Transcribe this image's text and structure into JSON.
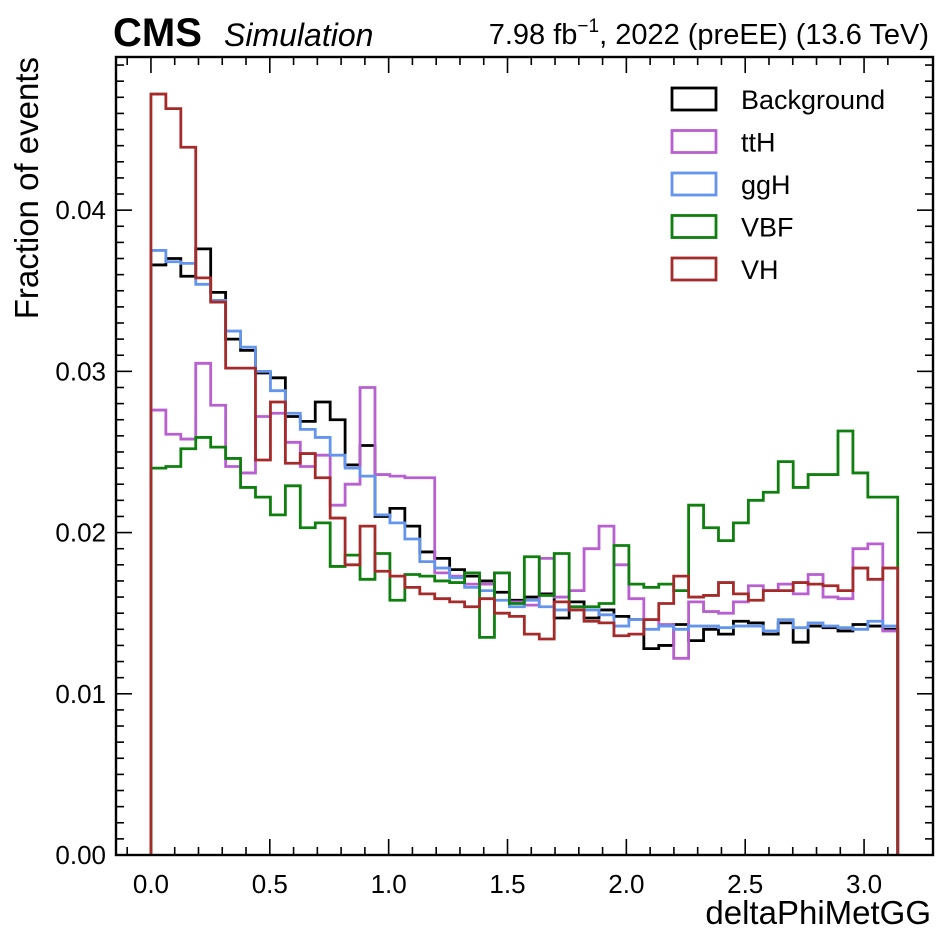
{
  "header": {
    "experiment": "CMS",
    "status": "Simulation",
    "lumi_value": "7.98 fb",
    "lumi_exponent": "−1",
    "lumi_rest": ", 2022 (preEE) (13.6 TeV)"
  },
  "chart_data": {
    "type": "step-histogram",
    "xlabel": "deltaPhiMetGG",
    "ylabel": "Fraction of events",
    "xlim": [
      -0.147,
      3.29
    ],
    "ylim": [
      0.0,
      0.0495
    ],
    "x_tick_labels": [
      "0.0",
      "0.5",
      "1.0",
      "1.5",
      "2.0",
      "2.5",
      "3.0"
    ],
    "x_ticks": [
      0.0,
      0.5,
      1.0,
      1.5,
      2.0,
      2.5,
      3.0
    ],
    "y_tick_labels": [
      "0.00",
      "0.01",
      "0.02",
      "0.03",
      "0.04"
    ],
    "y_ticks": [
      0.0,
      0.01,
      0.02,
      0.03,
      0.04
    ],
    "grid": false,
    "legend_position": "top-right",
    "bin_edges": [
      0.0,
      0.0628,
      0.1257,
      0.1885,
      0.2513,
      0.3142,
      0.377,
      0.4398,
      0.5027,
      0.5655,
      0.6283,
      0.6912,
      0.754,
      0.8168,
      0.8796,
      0.9425,
      1.0053,
      1.0681,
      1.131,
      1.1938,
      1.2566,
      1.3195,
      1.3823,
      1.4451,
      1.508,
      1.5708,
      1.6336,
      1.6965,
      1.7593,
      1.8221,
      1.885,
      1.9478,
      2.0106,
      2.0735,
      2.1363,
      2.1991,
      2.2619,
      2.3248,
      2.3876,
      2.4504,
      2.5133,
      2.5761,
      2.6389,
      2.7018,
      2.7646,
      2.8274,
      2.8903,
      2.9531,
      3.0159,
      3.0788,
      3.1416
    ],
    "series": [
      {
        "name": "Background",
        "color": "#000000",
        "values": [
          0.0366,
          0.037,
          0.0359,
          0.0376,
          0.0349,
          0.032,
          0.0313,
          0.0299,
          0.0296,
          0.0272,
          0.0269,
          0.0281,
          0.027,
          0.0242,
          0.0254,
          0.021,
          0.0215,
          0.0204,
          0.0188,
          0.0184,
          0.0177,
          0.0173,
          0.017,
          0.0163,
          0.0158,
          0.016,
          0.0162,
          0.0147,
          0.0157,
          0.0147,
          0.0152,
          0.0148,
          0.0146,
          0.0128,
          0.013,
          0.0143,
          0.0133,
          0.014,
          0.0137,
          0.0145,
          0.0144,
          0.0137,
          0.0144,
          0.0132,
          0.0142,
          0.0141,
          0.0139,
          0.0143,
          0.0142,
          0.014
        ]
      },
      {
        "name": "ttH",
        "color": "#b85fd1",
        "values": [
          0.0276,
          0.0261,
          0.0258,
          0.0305,
          0.0279,
          0.0241,
          0.0237,
          0.0272,
          0.0274,
          0.0256,
          0.0241,
          0.0248,
          0.0217,
          0.023,
          0.029,
          0.0236,
          0.0235,
          0.0234,
          0.0234,
          0.0175,
          0.0173,
          0.0168,
          0.0168,
          0.0175,
          0.0157,
          0.0155,
          0.0184,
          0.016,
          0.0164,
          0.019,
          0.0204,
          0.018,
          0.0159,
          0.0146,
          0.0143,
          0.0122,
          0.0157,
          0.0151,
          0.015,
          0.0157,
          0.0167,
          0.0164,
          0.0168,
          0.0162,
          0.0174,
          0.016,
          0.0159,
          0.019,
          0.0193,
          0.0139
        ]
      },
      {
        "name": "ggH",
        "color": "#6495ed",
        "values": [
          0.0375,
          0.0368,
          0.0367,
          0.0354,
          0.0344,
          0.0325,
          0.0315,
          0.03,
          0.0288,
          0.0274,
          0.0264,
          0.0259,
          0.0248,
          0.024,
          0.0235,
          0.0211,
          0.0206,
          0.0196,
          0.0182,
          0.0178,
          0.0172,
          0.0166,
          0.0164,
          0.0158,
          0.0154,
          0.0158,
          0.0154,
          0.0152,
          0.0154,
          0.0152,
          0.0149,
          0.0142,
          0.0146,
          0.014,
          0.0142,
          0.014,
          0.0142,
          0.0142,
          0.0141,
          0.0142,
          0.0142,
          0.0139,
          0.0146,
          0.0141,
          0.0144,
          0.0142,
          0.0141,
          0.014,
          0.0145,
          0.0142
        ]
      },
      {
        "name": "VBF",
        "color": "#0f800f",
        "values": [
          0.024,
          0.0241,
          0.0252,
          0.0259,
          0.0253,
          0.0246,
          0.0228,
          0.0222,
          0.0211,
          0.0229,
          0.0203,
          0.0206,
          0.0179,
          0.0186,
          0.0171,
          0.0187,
          0.0158,
          0.0174,
          0.0173,
          0.017,
          0.0169,
          0.0175,
          0.0135,
          0.0175,
          0.0156,
          0.0185,
          0.0161,
          0.0187,
          0.0154,
          0.0154,
          0.0156,
          0.0192,
          0.0168,
          0.0166,
          0.0168,
          0.0164,
          0.0217,
          0.0203,
          0.0195,
          0.0206,
          0.022,
          0.0225,
          0.0244,
          0.0228,
          0.0236,
          0.0236,
          0.0263,
          0.0237,
          0.0222,
          0.0222
        ]
      },
      {
        "name": "VH",
        "color": "#a52a2a",
        "values": [
          0.0472,
          0.0463,
          0.0439,
          0.0358,
          0.0343,
          0.0302,
          0.0302,
          0.0245,
          0.0281,
          0.0243,
          0.0249,
          0.0234,
          0.0209,
          0.018,
          0.0204,
          0.0176,
          0.0173,
          0.0166,
          0.0162,
          0.0159,
          0.0157,
          0.0154,
          0.0159,
          0.015,
          0.0148,
          0.0137,
          0.0134,
          0.0157,
          0.0152,
          0.0145,
          0.0144,
          0.0136,
          0.0137,
          0.0146,
          0.0156,
          0.0173,
          0.016,
          0.0161,
          0.0169,
          0.0162,
          0.0158,
          0.0164,
          0.0164,
          0.0169,
          0.0168,
          0.0167,
          0.0164,
          0.0178,
          0.0171,
          0.0178
        ]
      }
    ]
  }
}
